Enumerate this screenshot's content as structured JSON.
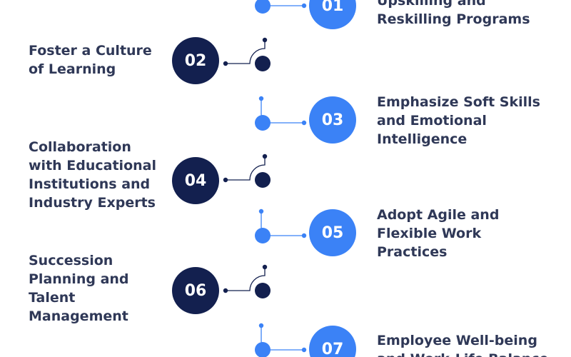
{
  "colors": {
    "blue": "#3b82f6",
    "navy": "#13204f",
    "text": "#2f3857"
  },
  "steps": [
    {
      "number": "01",
      "text": "Upskilling and\nReskilling Programs"
    },
    {
      "number": "02",
      "text": "Foster a Culture\nof Learning"
    },
    {
      "number": "03",
      "text": "Emphasize Soft Skills\nand Emotional\nIntelligence"
    },
    {
      "number": "04",
      "text": "Collaboration\nwith Educational\nInstitutions and\nIndustry Experts"
    },
    {
      "number": "05",
      "text": "Adopt Agile and\nFlexible Work\nPractices"
    },
    {
      "number": "06",
      "text": "Succession\nPlanning and\nTalent\nManagement"
    },
    {
      "number": "07",
      "text": "Employee Well-being\nand Work-Life Balance"
    }
  ]
}
